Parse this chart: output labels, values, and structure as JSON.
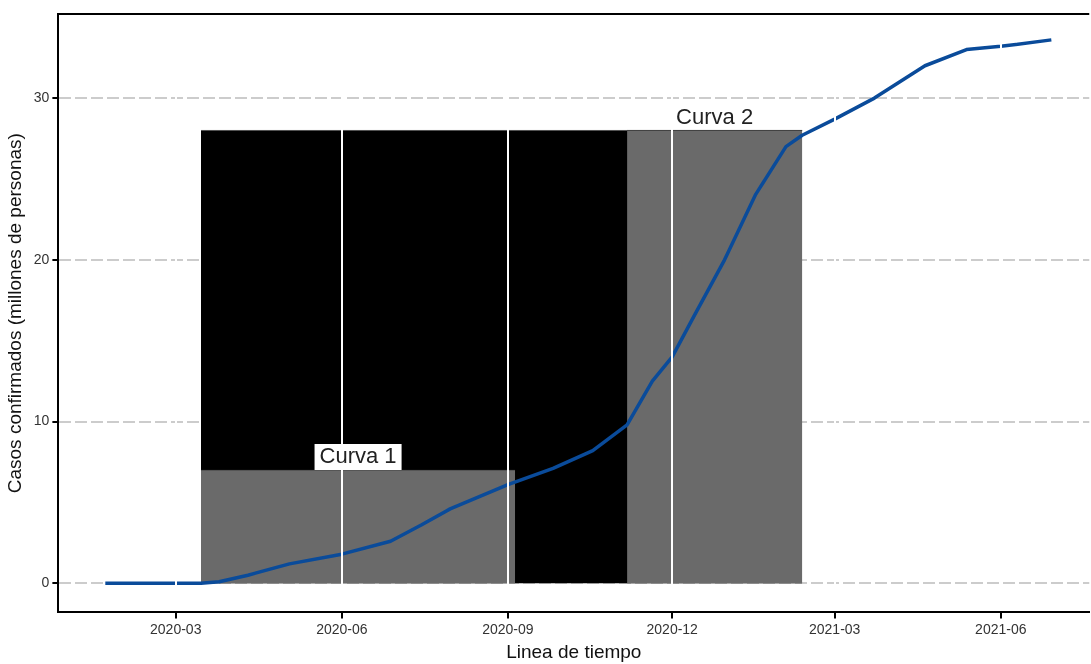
{
  "chart_data": {
    "type": "line",
    "xlabel": "Linea de tiempo",
    "ylabel": "Casos confirmados (millones de personas)",
    "xlim": [
      "2019-12-27",
      "2021-07-20"
    ],
    "xticks": [
      "2020-03",
      "2020-06",
      "2020-09",
      "2020-12",
      "2021-03",
      "2021-06"
    ],
    "ylim": [
      -1.8,
      35.2
    ],
    "yticks": [
      0,
      10,
      20,
      30
    ],
    "grid": true,
    "legend": false,
    "marker": "none",
    "line_style": "solid",
    "series": [
      {
        "type": "area",
        "color": "#000000",
        "x": [
          "2020-03-15",
          "2021-02-11"
        ],
        "values": [
          28,
          28
        ]
      },
      {
        "type": "area",
        "name": "Curva 1",
        "color": "#6a6a6a",
        "x": [
          "2020-03-15",
          "2020-09-05"
        ],
        "values": [
          7,
          7
        ]
      },
      {
        "type": "area",
        "name": "Curva 2",
        "color": "#6a6a6a",
        "x": [
          "2020-11-06",
          "2021-02-11"
        ],
        "values": [
          28,
          28
        ]
      },
      {
        "type": "line",
        "color": "#0a4b9a",
        "x": [
          "2020-01-22",
          "2020-03-15",
          "2020-03-25",
          "2020-04-10",
          "2020-05-03",
          "2020-06-01",
          "2020-06-28",
          "2020-07-15",
          "2020-07-31",
          "2020-09-01",
          "2020-09-26",
          "2020-10-18",
          "2020-11-06",
          "2020-11-20",
          "2020-12-01",
          "2020-12-13",
          "2020-12-30",
          "2021-01-16",
          "2021-02-02",
          "2021-02-11",
          "2021-03-01",
          "2021-03-23",
          "2021-04-20",
          "2021-05-13",
          "2021-06-01",
          "2021-06-29"
        ],
        "values": [
          0,
          0,
          0.1,
          0.5,
          1.2,
          1.8,
          2.6,
          3.6,
          4.6,
          6.1,
          7.1,
          8.2,
          9.8,
          12.5,
          14,
          16.5,
          20,
          24,
          27,
          27.7,
          28.7,
          30,
          32,
          33,
          33.2,
          33.6
        ]
      }
    ]
  }
}
